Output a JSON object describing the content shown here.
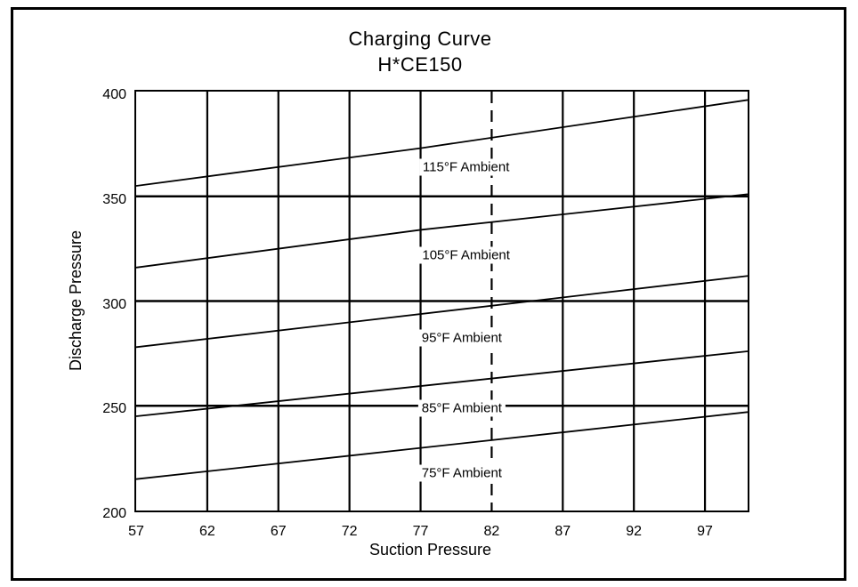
{
  "page": {
    "background_color": "#ffffff",
    "ink_color": "#000000"
  },
  "chart_data": {
    "type": "line",
    "title": "Charging Curve",
    "subtitle": "H*CE150",
    "xlabel": "Suction Pressure",
    "ylabel": "Discharge Pressure",
    "xlim": [
      57,
      100
    ],
    "ylim": [
      200,
      400
    ],
    "x_ticks": [
      57,
      62,
      67,
      72,
      77,
      82,
      87,
      92,
      97
    ],
    "y_ticks": [
      200,
      250,
      300,
      350,
      400
    ],
    "grid": true,
    "dashed_x_gridline": 82,
    "legend_position": "inline-labels-on-plot",
    "series": [
      {
        "name": "115°F Ambient",
        "points": [
          [
            57,
            355
          ],
          [
            77,
            373
          ],
          [
            100,
            396
          ]
        ],
        "label_at": [
          80.2,
          364
        ]
      },
      {
        "name": "105°F Ambient",
        "points": [
          [
            57,
            316
          ],
          [
            77,
            334
          ],
          [
            100,
            351
          ]
        ],
        "label_at": [
          80.2,
          322
        ]
      },
      {
        "name": "95°F Ambient",
        "points": [
          [
            57,
            278
          ],
          [
            100,
            312
          ]
        ],
        "label_at": [
          79.9,
          282.5
        ]
      },
      {
        "name": "85°F Ambient",
        "points": [
          [
            57,
            245
          ],
          [
            100,
            276
          ]
        ],
        "label_at": [
          79.9,
          249
        ]
      },
      {
        "name": "75°F Ambient",
        "points": [
          [
            57,
            215
          ],
          [
            100,
            247
          ]
        ],
        "label_at": [
          79.9,
          218
        ]
      }
    ]
  }
}
